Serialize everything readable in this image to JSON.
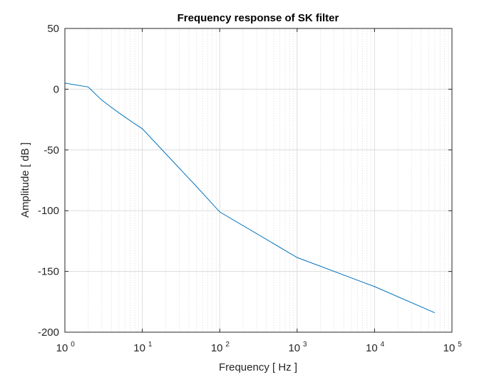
{
  "chart_data": {
    "type": "line",
    "title": "Frequency response of SK filter",
    "xlabel": "Frequency [ Hz ]",
    "ylabel": "Amplitude [ dB ]",
    "x_scale": "log",
    "xlim": [
      1,
      100000
    ],
    "ylim": [
      -200,
      50
    ],
    "grid": true,
    "minor_grid": true,
    "x_ticks": [
      {
        "base": "10",
        "exp": "0"
      },
      {
        "base": "10",
        "exp": "1"
      },
      {
        "base": "10",
        "exp": "2"
      },
      {
        "base": "10",
        "exp": "3"
      },
      {
        "base": "10",
        "exp": "4"
      },
      {
        "base": "10",
        "exp": "5"
      }
    ],
    "y_ticks": [
      "50",
      "0",
      "-50",
      "-100",
      "-150",
      "-200"
    ],
    "series": [
      {
        "color": "#0072bd",
        "x": [
          1,
          2,
          3,
          4,
          5,
          6,
          8,
          10,
          20,
          50,
          100,
          1000,
          10000,
          60000
        ],
        "y": [
          5,
          1.8,
          -9,
          -15,
          -19.5,
          -23,
          -28.5,
          -32.5,
          -53,
          -80,
          -101,
          -138.5,
          -162.5,
          -184
        ]
      }
    ]
  }
}
